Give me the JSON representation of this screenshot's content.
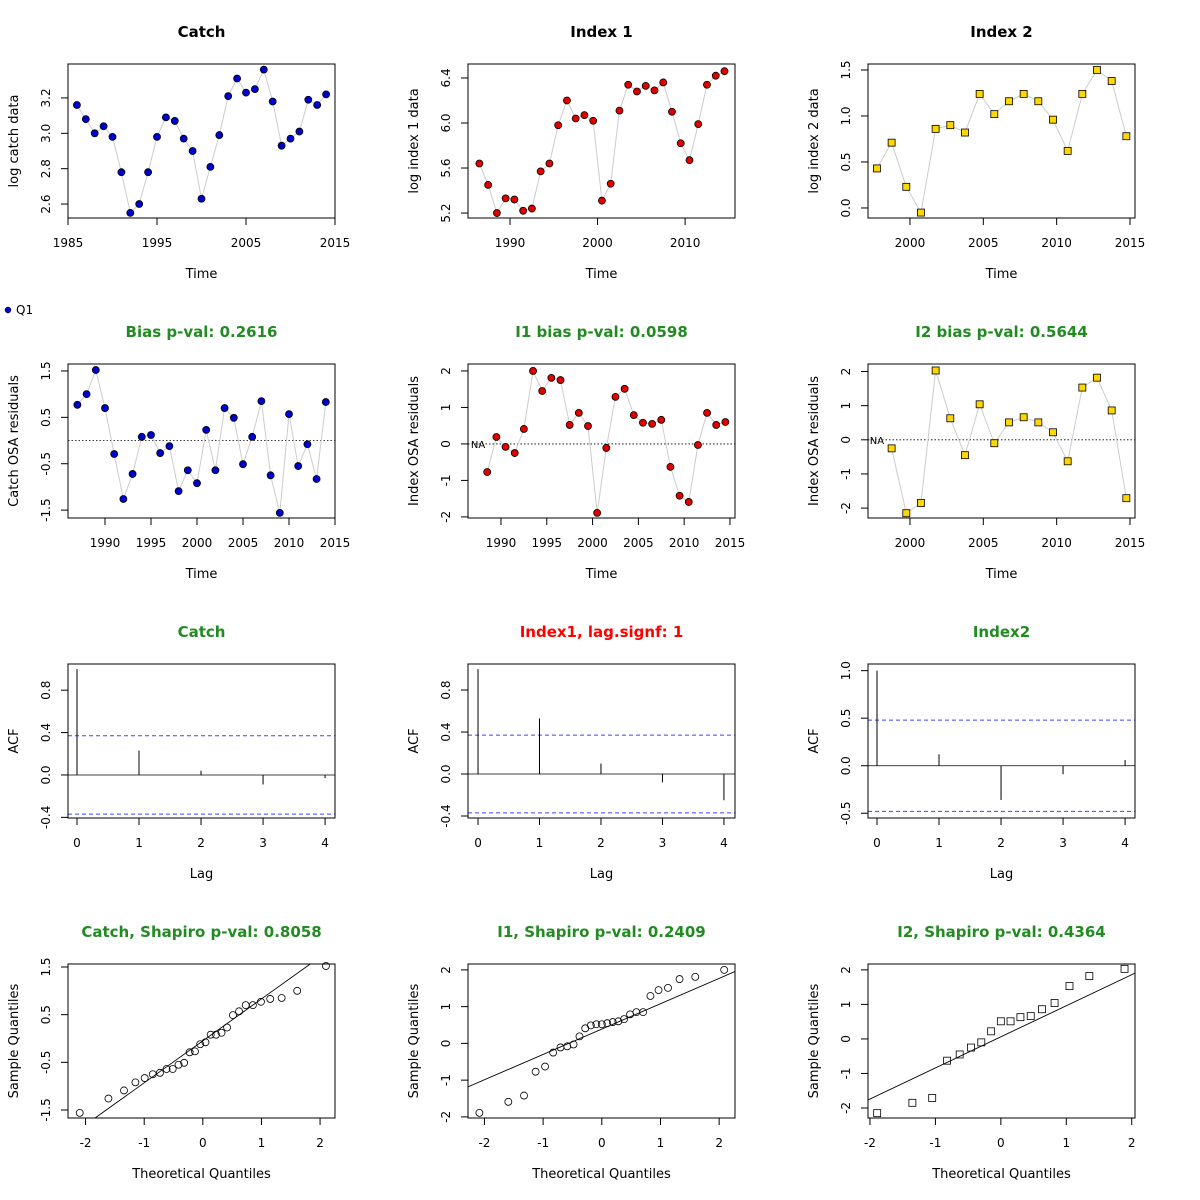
{
  "chart_data": [
    {
      "type": "line",
      "title": "Catch",
      "title_color": "#000000",
      "xlabel": "Time",
      "ylabel": "log catch data",
      "x": [
        1986,
        1987,
        1988,
        1989,
        1990,
        1991,
        1992,
        1993,
        1994,
        1995,
        1996,
        1997,
        1998,
        1999,
        2000,
        2001,
        2002,
        2003,
        2004,
        2005,
        2006,
        2007,
        2008,
        2009,
        2010,
        2011,
        2012,
        2013,
        2014
      ],
      "series": [
        {
          "color": "#0000cd",
          "values": [
            3.16,
            3.08,
            3.0,
            3.04,
            2.98,
            2.78,
            2.55,
            2.6,
            2.78,
            2.98,
            3.09,
            3.07,
            2.97,
            2.9,
            2.63,
            2.81,
            2.99,
            3.21,
            3.31,
            3.23,
            3.25,
            3.36,
            3.18,
            2.93,
            2.97,
            3.01,
            3.19,
            3.16,
            3.22
          ]
        }
      ],
      "marker": "circle",
      "line_color": "#cccccc",
      "xlim": [
        1985,
        2015
      ],
      "ylim": [
        2.521,
        3.392
      ],
      "xticks": [
        1985,
        1995,
        2005,
        2015
      ],
      "yticks": [
        2.6,
        2.8,
        {
          "value": 3,
          "label": "3.0"
        },
        3.2
      ]
    },
    {
      "type": "line",
      "title": "Index 1",
      "title_color": "#000000",
      "xlabel": "Time",
      "ylabel": "log index 1 data",
      "x": [
        1986.5,
        1987.5,
        1988.5,
        1989.5,
        1990.5,
        1991.5,
        1992.5,
        1993.5,
        1994.5,
        1995.5,
        1996.5,
        1997.5,
        1998.5,
        1999.5,
        2000.5,
        2001.5,
        2002.5,
        2003.5,
        2004.5,
        2005.5,
        2006.5,
        2007.5,
        2008.5,
        2009.5,
        2010.5,
        2011.5,
        2012.5,
        2013.5,
        2014.5
      ],
      "series": [
        {
          "color": "#e00000",
          "values": [
            5.64,
            5.45,
            5.2,
            5.33,
            5.32,
            5.22,
            5.24,
            5.57,
            5.64,
            5.98,
            6.2,
            6.04,
            6.07,
            6.02,
            5.31,
            5.46,
            6.11,
            6.34,
            6.28,
            6.33,
            6.29,
            6.36,
            6.1,
            5.82,
            5.67,
            5.99,
            6.34,
            6.42,
            6.46
          ]
        }
      ],
      "marker": "circle",
      "line_color": "#cccccc",
      "xlim": [
        1985.2,
        2015.7
      ],
      "ylim": [
        5.156,
        6.524
      ],
      "xticks": [
        1990,
        2000,
        2010
      ],
      "yticks": [
        5.2,
        5.6,
        {
          "value": 6,
          "label": "6.0"
        },
        6.4
      ]
    },
    {
      "type": "line",
      "title": "Index 2",
      "title_color": "#000000",
      "xlabel": "Time",
      "ylabel": "log index 2 data",
      "x": [
        1997.75,
        1998.75,
        1999.75,
        2000.75,
        2001.75,
        2002.75,
        2003.75,
        2004.75,
        2005.75,
        2006.75,
        2007.75,
        2008.75,
        2009.75,
        2010.75,
        2011.75,
        2012.75,
        2013.75,
        2014.75
      ],
      "series": [
        {
          "color": "#ffd700",
          "values": [
            0.43,
            0.71,
            0.23,
            -0.05,
            0.86,
            0.9,
            0.82,
            1.24,
            1.02,
            1.16,
            1.24,
            1.16,
            0.96,
            0.62,
            1.24,
            1.5,
            1.38,
            0.78
          ]
        }
      ],
      "marker": "square",
      "line_color": "#cccccc",
      "xlim": [
        1997.14,
        2015.34
      ],
      "ylim": [
        -0.109,
        1.565
      ],
      "xticks": [
        2000,
        2005,
        2010,
        2015
      ],
      "yticks": [
        {
          "value": 0,
          "label": "0.0"
        },
        0.5,
        {
          "value": 1,
          "label": "1.0"
        },
        1.5
      ]
    },
    {
      "type": "line",
      "title": "Bias p-val: 0.2616",
      "title_color": "#228b22",
      "xlabel": "Time",
      "ylabel": "Catch OSA residuals",
      "x": [
        1987,
        1988,
        1989,
        1990,
        1991,
        1992,
        1993,
        1994,
        1995,
        1996,
        1997,
        1998,
        1999,
        2000,
        2001,
        2002,
        2003,
        2004,
        2005,
        2006,
        2007,
        2008,
        2009,
        2010,
        2011,
        2012,
        2013,
        2014
      ],
      "series": [
        {
          "name": "Q1",
          "color": "#0000cd",
          "values": [
            0.77,
            1.0,
            1.52,
            0.7,
            -0.29,
            -1.26,
            -0.72,
            0.08,
            0.12,
            -0.27,
            -0.12,
            -1.09,
            -0.64,
            -0.92,
            0.23,
            -0.64,
            0.7,
            0.49,
            -0.51,
            0.08,
            0.85,
            -0.75,
            -1.56,
            0.57,
            -0.55,
            -0.08,
            -0.83,
            0.83
          ]
        }
      ],
      "marker": "circle",
      "line_color": "#cccccc",
      "hline": 0,
      "hline_style": "dotted",
      "xlim": [
        1985.98,
        2015
      ],
      "ylim": [
        -1.67,
        1.65
      ],
      "xticks": [
        1990,
        1995,
        2000,
        2005,
        2010,
        2015
      ],
      "yticks": [
        -1.5,
        -0.5,
        0.5,
        1.5
      ]
    },
    {
      "type": "line",
      "title": "I1 bias p-val: 0.0598",
      "title_color": "#228b22",
      "xlabel": "Time",
      "ylabel": "Index OSA residuals",
      "na_label": "NA",
      "x": [
        1987.5,
        1988.5,
        1989.5,
        1990.5,
        1991.5,
        1992.5,
        1993.5,
        1994.5,
        1995.5,
        1996.5,
        1997.5,
        1998.5,
        1999.5,
        2000.5,
        2001.5,
        2002.5,
        2003.5,
        2004.5,
        2005.5,
        2006.5,
        2007.5,
        2008.5,
        2009.5,
        2010.5,
        2011.5,
        2012.5,
        2013.5,
        2014.5
      ],
      "series": [
        {
          "color": "#e00000",
          "values": [
            null,
            -0.77,
            0.19,
            -0.08,
            -0.25,
            0.41,
            2.0,
            1.45,
            1.81,
            1.75,
            0.52,
            0.85,
            0.49,
            -1.89,
            -0.11,
            1.29,
            1.51,
            0.79,
            0.58,
            0.55,
            0.66,
            -0.63,
            -1.42,
            -1.59,
            -0.03,
            0.85,
            0.52,
            0.6
          ]
        }
      ],
      "marker": "circle",
      "line_color": "#cccccc",
      "hline": 0,
      "hline_style": "dotted",
      "xlim": [
        1986.4,
        2015.55
      ],
      "ylim": [
        -2.03,
        2.19
      ],
      "xticks": [
        1990,
        1995,
        2000,
        2005,
        2010,
        2015
      ],
      "yticks": [
        -2,
        -1,
        0,
        1,
        2
      ]
    },
    {
      "type": "line",
      "title": "I2 bias p-val: 0.5644",
      "title_color": "#228b22",
      "xlabel": "Time",
      "ylabel": "Index OSA residuals",
      "na_label": "NA",
      "x": [
        1997.75,
        1998.75,
        1999.75,
        2000.75,
        2001.75,
        2002.75,
        2003.75,
        2004.75,
        2005.75,
        2006.75,
        2007.75,
        2008.75,
        2009.75,
        2010.75,
        2011.75,
        2012.75,
        2013.75,
        2014.75
      ],
      "series": [
        {
          "color": "#ffd700",
          "values": [
            null,
            -0.25,
            -2.15,
            -1.85,
            2.03,
            0.63,
            -0.45,
            1.04,
            -0.1,
            0.51,
            0.66,
            0.51,
            0.22,
            -0.63,
            1.53,
            1.82,
            0.86,
            -1.71
          ]
        }
      ],
      "marker": "square",
      "line_color": "#cccccc",
      "hline": 0,
      "hline_style": "dotted",
      "xlim": [
        1997.14,
        2015.34
      ],
      "ylim": [
        -2.29,
        2.22
      ],
      "xticks": [
        2000,
        2005,
        2010,
        2015
      ],
      "yticks": [
        -2,
        -1,
        0,
        1,
        2
      ]
    },
    {
      "type": "acf",
      "title": "Catch",
      "title_color": "#228b22",
      "xlabel": "Lag",
      "ylabel": "ACF",
      "x": [
        0,
        1,
        2,
        3,
        4
      ],
      "values": [
        1.0,
        0.23,
        0.04,
        -0.09,
        -0.03
      ],
      "ci": [
        0.37,
        -0.37
      ],
      "ci_color": "#4040ff",
      "hline": 0,
      "hline_style": "solid",
      "xlim": [
        -0.145,
        4.16
      ],
      "ylim": [
        -0.406,
        1.047
      ],
      "xticks": [
        0,
        1,
        2,
        3,
        4
      ],
      "yticks": [
        -0.4,
        {
          "value": 0,
          "label": "0.0"
        },
        0.4,
        0.8
      ]
    },
    {
      "type": "acf",
      "title": "Index1, lag.signf: 1",
      "title_color": "#ff0000",
      "xlabel": "Lag",
      "ylabel": "ACF",
      "x": [
        0,
        1,
        2,
        3,
        4
      ],
      "values": [
        1.0,
        0.53,
        0.1,
        -0.08,
        -0.25
      ],
      "ci": [
        0.37,
        -0.37
      ],
      "ci_color": "#4040ff",
      "hline": 0,
      "hline_style": "solid",
      "xlim": [
        -0.163,
        4.18
      ],
      "ylim": [
        -0.419,
        1.048
      ],
      "xticks": [
        0,
        1,
        2,
        3,
        4
      ],
      "yticks": [
        -0.4,
        {
          "value": 0,
          "label": "0.0"
        },
        0.4,
        0.8
      ]
    },
    {
      "type": "acf",
      "title": "Index2",
      "title_color": "#228b22",
      "xlabel": "Lag",
      "ylabel": "ACF",
      "x": [
        0,
        1,
        2,
        3,
        4
      ],
      "values": [
        1.0,
        0.12,
        -0.36,
        -0.09,
        0.06
      ],
      "ci": [
        0.48,
        -0.48
      ],
      "ci_color": "#4040ff",
      "hline": 0,
      "hline_style": "solid",
      "xlim": [
        -0.145,
        4.16
      ],
      "ylim": [
        -0.55,
        1.07
      ],
      "xticks": [
        0,
        1,
        2,
        3,
        4
      ],
      "yticks": [
        -0.5,
        {
          "value": 0,
          "label": "0.0"
        },
        0.5,
        {
          "value": 1,
          "label": "1.0"
        }
      ]
    },
    {
      "type": "qq",
      "title": "Catch, Shapiro p-val: 0.8058",
      "title_color": "#228b22",
      "xlabel": "Theoretical Quantiles",
      "ylabel": "Sample Quantiles",
      "x": [
        -2.1,
        -1.61,
        -1.345,
        -1.15,
        -0.992,
        -0.854,
        -0.732,
        -0.619,
        -0.514,
        -0.414,
        -0.319,
        -0.225,
        -0.134,
        -0.045,
        0.045,
        0.134,
        0.225,
        0.319,
        0.414,
        0.514,
        0.619,
        0.732,
        0.854,
        0.992,
        1.15,
        1.345,
        1.61,
        2.1
      ],
      "values": [
        -1.56,
        -1.26,
        -1.09,
        -0.92,
        -0.83,
        -0.75,
        -0.72,
        -0.64,
        -0.64,
        -0.55,
        -0.51,
        -0.29,
        -0.27,
        -0.12,
        -0.08,
        0.08,
        0.08,
        0.12,
        0.23,
        0.49,
        0.57,
        0.7,
        0.7,
        0.77,
        0.83,
        0.85,
        1.0,
        1.52
      ],
      "marker": "circle",
      "line_intercept": -0.05,
      "line_slope": 0.88,
      "xlim": [
        -2.3,
        2.255
      ],
      "ylim": [
        -1.668,
        1.563
      ],
      "xticks": [
        -2,
        -1,
        0,
        1,
        2
      ],
      "yticks": [
        -1.5,
        -0.5,
        0.5,
        1.5
      ]
    },
    {
      "type": "qq",
      "title": "I1, Shapiro p-val: 0.2409",
      "title_color": "#228b22",
      "xlabel": "Theoretical Quantiles",
      "ylabel": "Sample Quantiles",
      "x": [
        -2.086,
        -1.593,
        -1.325,
        -1.128,
        -0.967,
        -0.829,
        -0.704,
        -0.589,
        -0.482,
        -0.38,
        -0.282,
        -0.187,
        -0.093,
        0,
        0.093,
        0.187,
        0.282,
        0.38,
        0.482,
        0.589,
        0.704,
        0.829,
        0.967,
        1.128,
        1.325,
        1.593,
        2.086
      ],
      "values": [
        -1.89,
        -1.59,
        -1.42,
        -0.77,
        -0.63,
        -0.25,
        -0.11,
        -0.08,
        -0.03,
        0.19,
        0.41,
        0.49,
        0.52,
        0.52,
        0.55,
        0.58,
        0.6,
        0.66,
        0.79,
        0.85,
        0.85,
        1.29,
        1.45,
        1.51,
        1.75,
        1.81,
        2.0
      ],
      "marker": "circle",
      "line_intercept": 0.39,
      "line_slope": 0.69,
      "xlim": [
        -2.28,
        2.27
      ],
      "ylim": [
        -2.03,
        2.16
      ],
      "xticks": [
        -2,
        -1,
        0,
        1,
        2
      ],
      "yticks": [
        -2,
        -1,
        0,
        1,
        2
      ]
    },
    {
      "type": "qq",
      "title": "I2, Shapiro p-val: 0.4364",
      "title_color": "#228b22",
      "xlabel": "Theoretical Quantiles",
      "ylabel": "Sample Quantiles",
      "x": [
        -1.89,
        -1.352,
        -1.049,
        -0.821,
        -0.629,
        -0.457,
        -0.299,
        -0.148,
        0,
        0.148,
        0.299,
        0.457,
        0.629,
        0.821,
        1.049,
        1.352,
        1.89
      ],
      "values": [
        -2.15,
        -1.85,
        -1.71,
        -0.63,
        -0.45,
        -0.25,
        -0.1,
        0.22,
        0.51,
        0.51,
        0.63,
        0.66,
        0.86,
        1.04,
        1.53,
        1.82,
        2.03
      ],
      "marker": "square",
      "line_intercept": 0.06,
      "line_slope": 0.9,
      "xlim": [
        -2.03,
        2.05
      ],
      "ylim": [
        -2.29,
        2.17
      ],
      "xticks": [
        -2,
        -1,
        0,
        1,
        2
      ],
      "yticks": [
        -2,
        -1,
        0,
        1,
        2
      ]
    }
  ]
}
